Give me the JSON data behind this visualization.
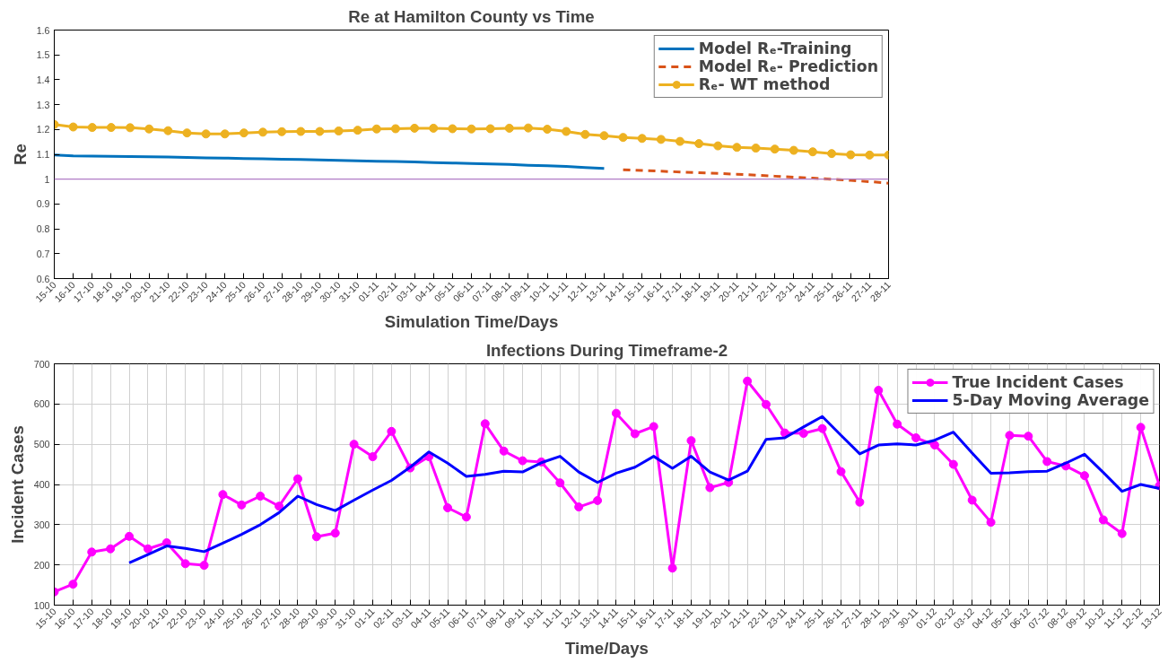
{
  "chart_data": [
    {
      "type": "line",
      "title": "Re at Hamilton County vs Time",
      "xlabel": "Simulation Time/Days",
      "ylabel": "Re",
      "categories": [
        "15-10",
        "16-10",
        "17-10",
        "18-10",
        "19-10",
        "20-10",
        "21-10",
        "22-10",
        "23-10",
        "24-10",
        "25-10",
        "26-10",
        "27-10",
        "28-10",
        "29-10",
        "30-10",
        "31-10",
        "01-11",
        "02-11",
        "03-11",
        "04-11",
        "05-11",
        "06-11",
        "07-11",
        "08-11",
        "09-11",
        "10-11",
        "11-11",
        "12-11",
        "13-11",
        "14-11",
        "15-11",
        "16-11",
        "17-11",
        "18-11",
        "19-11",
        "20-11",
        "21-11",
        "22-11",
        "23-11",
        "24-11",
        "25-11",
        "26-11",
        "27-11",
        "28-11"
      ],
      "series": [
        {
          "name": "Model Rₑ-Training",
          "color": "#0072bd",
          "line_style": "solid",
          "marker": "none",
          "values": [
            1.097,
            1.094,
            1.093,
            1.092,
            1.091,
            1.09,
            1.089,
            1.087,
            1.086,
            1.085,
            1.083,
            1.082,
            1.08,
            1.079,
            1.077,
            1.076,
            1.074,
            1.072,
            1.071,
            1.069,
            1.067,
            1.065,
            1.063,
            1.061,
            1.059,
            1.056,
            1.054,
            1.051,
            1.047,
            1.043,
            null,
            null,
            null,
            null,
            null,
            null,
            null,
            null,
            null,
            null,
            null,
            null,
            null,
            null,
            null
          ]
        },
        {
          "name": "Model Rₑ- Prediction",
          "color": "#d95319",
          "line_style": "dashed",
          "marker": "none",
          "values": [
            null,
            null,
            null,
            null,
            null,
            null,
            null,
            null,
            null,
            null,
            null,
            null,
            null,
            null,
            null,
            null,
            null,
            null,
            null,
            null,
            null,
            null,
            null,
            null,
            null,
            null,
            null,
            null,
            null,
            null,
            1.038,
            1.035,
            1.032,
            1.029,
            1.026,
            1.023,
            1.02,
            1.016,
            1.012,
            1.008,
            1.004,
            1.0,
            0.995,
            0.99,
            0.984
          ]
        },
        {
          "name": "Rₑ- WT method",
          "color": "#edb120",
          "line_style": "solid",
          "marker": "circle",
          "values": [
            1.22,
            1.21,
            1.208,
            1.208,
            1.207,
            1.202,
            1.195,
            1.186,
            1.182,
            1.182,
            1.186,
            1.189,
            1.191,
            1.192,
            1.192,
            1.194,
            1.197,
            1.202,
            1.203,
            1.205,
            1.205,
            1.203,
            1.202,
            1.203,
            1.205,
            1.206,
            1.201,
            1.192,
            1.18,
            1.175,
            1.168,
            1.164,
            1.16,
            1.152,
            1.143,
            1.134,
            1.128,
            1.125,
            1.121,
            1.116,
            1.11,
            1.103,
            1.098,
            1.097,
            1.097
          ]
        }
      ],
      "ref_lines": [
        {
          "axis": "y",
          "value": 1,
          "color": "#b07cc6",
          "line_style": "solid"
        }
      ],
      "ylim": [
        0.6,
        1.6
      ],
      "yticks": [
        0.6,
        0.7,
        0.8,
        0.9,
        1,
        1.1,
        1.2,
        1.3,
        1.4,
        1.5,
        1.6
      ],
      "grid": false,
      "legend": "top right"
    },
    {
      "type": "line",
      "title": "Infections During Timeframe-2",
      "xlabel": "Time/Days",
      "ylabel": "Incident Cases",
      "categories": [
        "15-10",
        "16-10",
        "17-10",
        "18-10",
        "19-10",
        "20-10",
        "21-10",
        "22-10",
        "23-10",
        "24-10",
        "25-10",
        "26-10",
        "27-10",
        "28-10",
        "29-10",
        "30-10",
        "31-10",
        "01-11",
        "02-11",
        "03-11",
        "04-11",
        "05-11",
        "06-11",
        "07-11",
        "08-11",
        "09-11",
        "10-11",
        "11-11",
        "12-11",
        "13-11",
        "14-11",
        "15-11",
        "16-11",
        "17-11",
        "18-11",
        "19-11",
        "20-11",
        "21-11",
        "22-11",
        "23-11",
        "24-11",
        "25-11",
        "26-11",
        "27-11",
        "28-11",
        "29-11",
        "30-11",
        "01-12",
        "02-12",
        "03-12",
        "04-12",
        "05-12",
        "06-12",
        "07-12",
        "08-12",
        "09-12",
        "10-12",
        "11-12",
        "12-12",
        "13-12"
      ],
      "series": [
        {
          "name": "True Incident Cases",
          "color": "#ff00ff",
          "line_style": "solid",
          "marker": "circle",
          "values": [
            133,
            152,
            232,
            240,
            271,
            240,
            255,
            203,
            199,
            375,
            349,
            371,
            346,
            414,
            270,
            279,
            500,
            469,
            532,
            441,
            469,
            342,
            319,
            551,
            483,
            459,
            456,
            404,
            344,
            360,
            577,
            526,
            544,
            192,
            509,
            392,
            405,
            657,
            599,
            528,
            527,
            539,
            432,
            356,
            634,
            550,
            516,
            498,
            450,
            361,
            306,
            522,
            520,
            457,
            446,
            422,
            312,
            278,
            542,
            397
          ]
        },
        {
          "name": "5-Day Moving Average",
          "color": "#0000ff",
          "line_style": "solid",
          "marker": "none",
          "values": [
            null,
            null,
            null,
            null,
            205,
            226,
            247,
            241,
            233,
            254,
            276,
            300,
            330,
            371,
            350,
            335,
            361,
            386,
            410,
            443,
            481,
            453,
            420,
            425,
            433,
            431,
            454,
            470,
            431,
            405,
            428,
            443,
            470,
            440,
            470,
            431,
            411,
            433,
            512,
            516,
            543,
            569,
            522,
            476,
            498,
            501,
            498,
            510,
            530,
            478,
            428,
            429,
            432,
            433,
            453,
            475,
            430,
            383,
            400,
            390
          ]
        }
      ],
      "ylim": [
        100,
        700
      ],
      "yticks": [
        100,
        200,
        300,
        400,
        500,
        600,
        700
      ],
      "grid": true,
      "legend": "top right"
    }
  ]
}
